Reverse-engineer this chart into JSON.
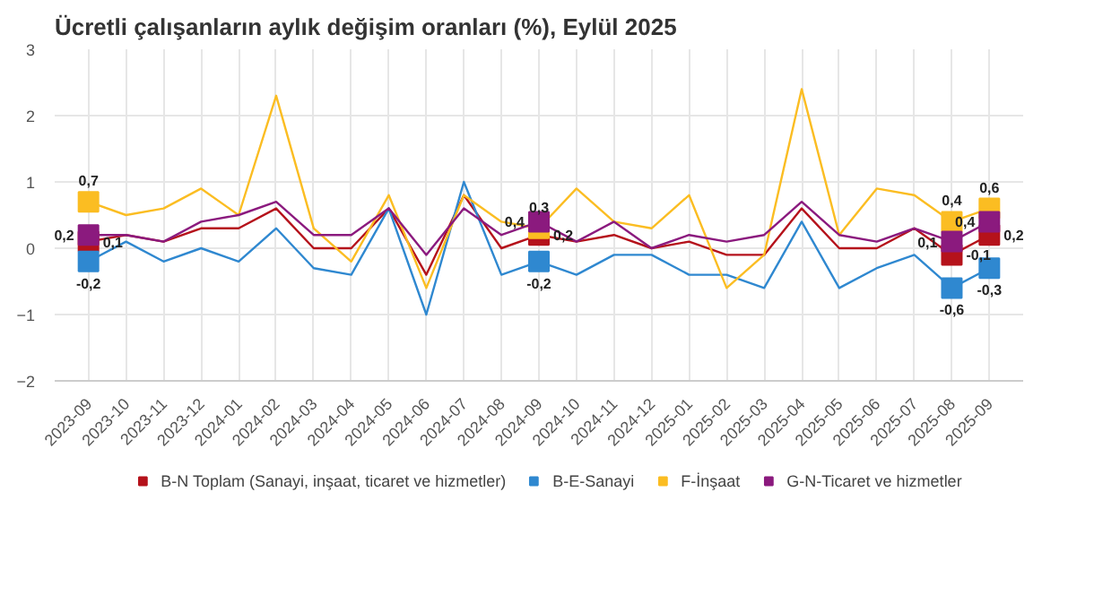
{
  "chart_data": {
    "type": "line",
    "title": "Ücretli çalışanların aylık değişim oranları (%), Eylül 2025",
    "categories": [
      "2023-09",
      "2023-10",
      "2023-11",
      "2023-12",
      "2024-01",
      "2024-02",
      "2024-03",
      "2024-04",
      "2024-05",
      "2024-06",
      "2024-07",
      "2024-08",
      "2024-09",
      "2024-10",
      "2024-11",
      "2024-12",
      "2025-01",
      "2025-02",
      "2025-03",
      "2025-04",
      "2025-05",
      "2025-06",
      "2025-07",
      "2025-08",
      "2025-09"
    ],
    "series": [
      {
        "name": "B-N Toplam (Sanayi, inşaat, ticaret ve hizmetler)",
        "color": "#b5121b",
        "values": [
          0.1,
          0.2,
          0.1,
          0.3,
          0.3,
          0.6,
          0,
          0,
          0.6,
          -0.4,
          0.8,
          0,
          0.2,
          0.1,
          0.2,
          0,
          0.1,
          -0.1,
          -0.1,
          0.6,
          0,
          0,
          0.3,
          -0.1,
          0.2
        ],
        "value_labels": [
          "0,1",
          null,
          null,
          null,
          null,
          null,
          null,
          null,
          null,
          null,
          null,
          null,
          "0,2",
          null,
          null,
          null,
          null,
          null,
          null,
          null,
          null,
          null,
          null,
          "-0,1",
          "0,2"
        ]
      },
      {
        "name": "B-E-Sanayi",
        "color": "#2f88d0",
        "values": [
          -0.2,
          0.1,
          -0.2,
          0,
          -0.2,
          0.3,
          -0.3,
          -0.4,
          0.6,
          -1.0,
          1.0,
          -0.4,
          -0.2,
          -0.4,
          -0.1,
          -0.1,
          -0.4,
          -0.4,
          -0.6,
          0.4,
          -0.6,
          -0.3,
          -0.1,
          -0.6,
          -0.3
        ],
        "value_labels": [
          "-0,2",
          null,
          null,
          null,
          null,
          null,
          null,
          null,
          null,
          null,
          null,
          null,
          "-0,2",
          null,
          null,
          null,
          null,
          null,
          null,
          null,
          null,
          null,
          null,
          "-0,6",
          "-0,3"
        ]
      },
      {
        "name": "F-İnşaat",
        "color": "#fbbd22",
        "values": [
          0.7,
          0.5,
          0.6,
          0.9,
          0.5,
          2.3,
          0.3,
          -0.2,
          0.8,
          -0.6,
          0.8,
          0.4,
          0.3,
          0.9,
          0.4,
          0.3,
          0.8,
          -0.6,
          -0.1,
          2.4,
          0.2,
          0.9,
          0.8,
          0.4,
          0.6
        ],
        "value_labels": [
          "0,7",
          null,
          null,
          null,
          null,
          null,
          null,
          null,
          null,
          null,
          null,
          null,
          "0,3",
          null,
          null,
          null,
          null,
          null,
          null,
          null,
          null,
          null,
          null,
          "0,4",
          "0,6"
        ]
      },
      {
        "name": "G-N-Ticaret ve hizmetler",
        "color": "#8b1a7e",
        "values": [
          0.2,
          0.2,
          0.1,
          0.4,
          0.5,
          0.7,
          0.2,
          0.2,
          0.6,
          -0.1,
          0.6,
          0.2,
          0.4,
          0.1,
          0.4,
          0,
          0.2,
          0.1,
          0.2,
          0.7,
          0.2,
          0.1,
          0.3,
          0.1,
          0.4
        ],
        "value_labels": [
          "0,2",
          null,
          null,
          null,
          null,
          null,
          null,
          null,
          null,
          null,
          null,
          null,
          "0,4",
          null,
          null,
          null,
          null,
          null,
          null,
          null,
          null,
          null,
          null,
          "0,1",
          "0,4"
        ]
      }
    ],
    "ylim": [
      -2,
      3
    ],
    "yticks": [
      -2,
      -1,
      0,
      1,
      2,
      3
    ],
    "grid": true,
    "legend": "bottom",
    "line_style": "solid"
  }
}
